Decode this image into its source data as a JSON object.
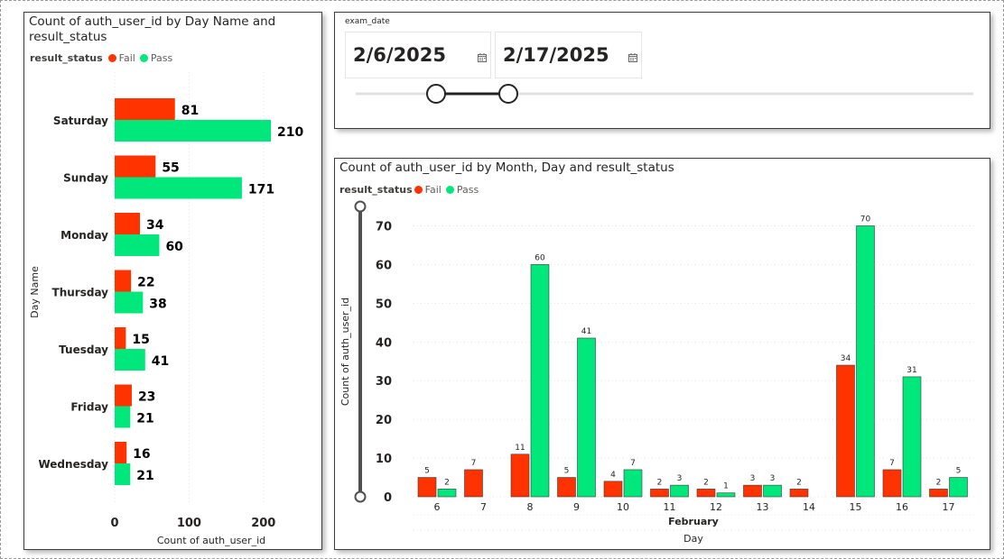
{
  "colors": {
    "fail": "#ff3300",
    "pass": "#00e77b",
    "border": "#3c3c3c"
  },
  "slicer": {
    "label": "exam_date",
    "start_date": "2/6/2025",
    "end_date": "2/17/2025",
    "icon": "calendar-icon"
  },
  "chart_data": [
    {
      "type": "bar",
      "orientation": "horizontal",
      "title": "Count of auth_user_id by Day Name and result_status",
      "xlabel": "Count of auth_user_id",
      "ylabel": "Day Name",
      "legend_title": "result_status",
      "legend_position": "top-left",
      "categories": [
        "Saturday",
        "Sunday",
        "Monday",
        "Thursday",
        "Tuesday",
        "Friday",
        "Wednesday"
      ],
      "series": [
        {
          "name": "Fail",
          "values": [
            81,
            55,
            34,
            22,
            15,
            23,
            16
          ]
        },
        {
          "name": "Pass",
          "values": [
            210,
            171,
            60,
            38,
            41,
            21,
            21
          ]
        }
      ],
      "xlim": [
        0,
        250
      ],
      "xticks": [
        0,
        100,
        200
      ],
      "grid": true
    },
    {
      "type": "bar",
      "orientation": "vertical",
      "title": "Count of auth_user_id by Month, Day and result_status",
      "xlabel": "Day",
      "x_group_label": "February",
      "ylabel": "Count of auth_user_id",
      "legend_title": "result_status",
      "legend_position": "top-left",
      "categories": [
        "6",
        "7",
        "8",
        "9",
        "10",
        "11",
        "12",
        "13",
        "14",
        "15",
        "16",
        "17"
      ],
      "series": [
        {
          "name": "Fail",
          "values": [
            5,
            7,
            11,
            5,
            4,
            2,
            2,
            3,
            2,
            34,
            7,
            2
          ]
        },
        {
          "name": "Pass",
          "values": [
            2,
            null,
            60,
            41,
            7,
            3,
            1,
            3,
            null,
            70,
            31,
            5
          ]
        }
      ],
      "ylim": [
        0,
        75
      ],
      "yticks": [
        0,
        10,
        20,
        30,
        40,
        50,
        60,
        70
      ],
      "grid": true
    }
  ]
}
